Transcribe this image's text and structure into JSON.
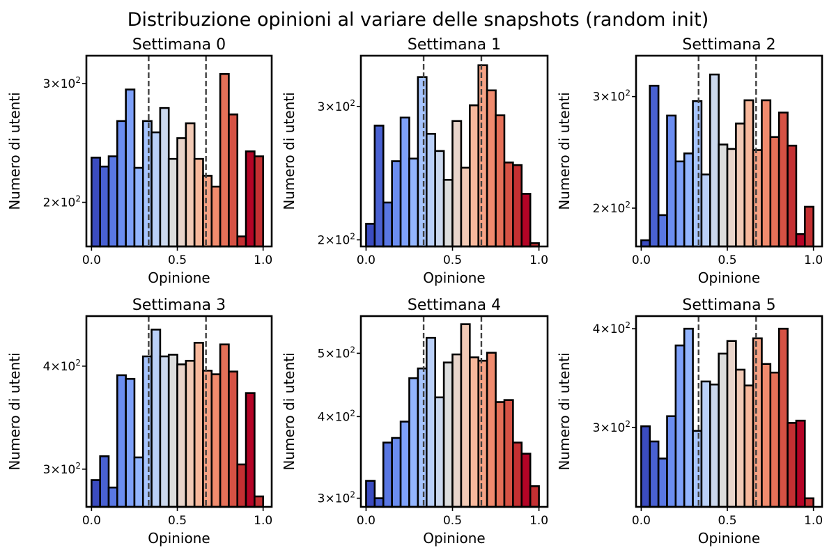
{
  "figure": {
    "title": "Distribuzione opinioni al variare delle snapshots (random init)"
  },
  "chart_data": [
    {
      "type": "bar",
      "title": "Settimana 0",
      "xlabel": "Opinione",
      "ylabel": "Numero di utenti",
      "yscale": "log",
      "ylim": [
        172,
        330
      ],
      "xlim": [
        -0.03,
        1.05
      ],
      "xticks": [
        0.0,
        0.5,
        1.0
      ],
      "xtick_labels": [
        "0.0",
        "0.5",
        "1.0"
      ],
      "yticks": [
        200,
        300
      ],
      "ytick_labels": [
        "2",
        "3"
      ],
      "ytick_base": "10",
      "ytick_exp": "2",
      "vlines": [
        0.333,
        0.667
      ],
      "bin_width": 0.05,
      "x": [
        0.0,
        0.05,
        0.1,
        0.15,
        0.2,
        0.25,
        0.3,
        0.35,
        0.4,
        0.45,
        0.5,
        0.55,
        0.6,
        0.65,
        0.7,
        0.75,
        0.8,
        0.85,
        0.9,
        0.95
      ],
      "values": [
        233,
        226,
        234,
        264,
        294,
        225,
        264,
        254,
        276,
        232,
        249,
        262,
        232,
        219,
        211,
        310,
        270,
        178,
        238,
        234
      ],
      "colors": [
        "#3b4cc0",
        "#4961d2",
        "#5977e3",
        "#6b8df0",
        "#7ea1fa",
        "#93b5fe",
        "#a7c5fe",
        "#bad0f8",
        "#cbd8ee",
        "#dcdddd",
        "#e9d5cb",
        "#f2cab6",
        "#f7b89c",
        "#f6a385",
        "#f08b6e",
        "#e57058",
        "#d65244",
        "#c43032",
        "#b40426",
        "#c43032"
      ]
    },
    {
      "type": "bar",
      "title": "Settimana 1",
      "xlabel": "Opinione",
      "ylabel": "Numero di utenti",
      "yscale": "log",
      "ylim": [
        196,
        350
      ],
      "xlim": [
        -0.03,
        1.05
      ],
      "xticks": [
        0.0,
        0.5,
        1.0
      ],
      "xtick_labels": [
        "0.0",
        "0.5",
        "1.0"
      ],
      "yticks": [
        200,
        300
      ],
      "ytick_labels": [
        "2",
        "3"
      ],
      "ytick_base": "10",
      "ytick_exp": "2",
      "vlines": [
        0.333,
        0.667
      ],
      "bin_width": 0.05,
      "x": [
        0.0,
        0.05,
        0.1,
        0.15,
        0.2,
        0.25,
        0.3,
        0.35,
        0.4,
        0.45,
        0.5,
        0.55,
        0.6,
        0.65,
        0.7,
        0.75,
        0.8,
        0.85,
        0.9,
        0.95
      ],
      "values": [
        210,
        283,
        224,
        254,
        290,
        256,
        328,
        276,
        262,
        240,
        287,
        249,
        301,
        340,
        315,
        292,
        253,
        251,
        230,
        198
      ],
      "colors": [
        "#3b4cc0",
        "#4961d2",
        "#5977e3",
        "#6b8df0",
        "#7ea1fa",
        "#93b5fe",
        "#a7c5fe",
        "#bad0f8",
        "#cbd8ee",
        "#dcdddd",
        "#e9d5cb",
        "#f2cab6",
        "#f7b89c",
        "#f6a385",
        "#f08b6e",
        "#e57058",
        "#d65244",
        "#c43032",
        "#b40426",
        "#c43032"
      ]
    },
    {
      "type": "bar",
      "title": "Settimana 2",
      "xlabel": "Opinione",
      "ylabel": "Numero di utenti",
      "yscale": "log",
      "ylim": [
        174,
        348
      ],
      "xlim": [
        -0.03,
        1.05
      ],
      "xticks": [
        0.0,
        0.5,
        1.0
      ],
      "xtick_labels": [
        "0.0",
        "0.5",
        "1.0"
      ],
      "yticks": [
        200,
        300
      ],
      "ytick_labels": [
        "2",
        "3"
      ],
      "ytick_base": "10",
      "ytick_exp": "2",
      "vlines": [
        0.333,
        0.667
      ],
      "bin_width": 0.05,
      "x": [
        0.0,
        0.05,
        0.1,
        0.15,
        0.2,
        0.25,
        0.3,
        0.35,
        0.4,
        0.45,
        0.5,
        0.55,
        0.6,
        0.65,
        0.7,
        0.75,
        0.8,
        0.85,
        0.9,
        0.95
      ],
      "values": [
        178,
        312,
        195,
        280,
        237,
        244,
        295,
        226,
        325,
        252,
        248,
        272,
        296,
        247,
        296,
        259,
        283,
        251,
        182,
        201
      ],
      "colors": [
        "#3b4cc0",
        "#4961d2",
        "#5977e3",
        "#6b8df0",
        "#7ea1fa",
        "#93b5fe",
        "#a7c5fe",
        "#bad0f8",
        "#cbd8ee",
        "#dcdddd",
        "#e9d5cb",
        "#f2cab6",
        "#f7b89c",
        "#f6a385",
        "#f08b6e",
        "#e57058",
        "#d65244",
        "#c43032",
        "#b40426",
        "#c43032"
      ]
    },
    {
      "type": "bar",
      "title": "Settimana 3",
      "xlabel": "Opinione",
      "ylabel": "Numero di utenti",
      "yscale": "log",
      "ylim": [
        270,
        460
      ],
      "xlim": [
        -0.03,
        1.05
      ],
      "xticks": [
        0.0,
        0.5,
        1.0
      ],
      "xtick_labels": [
        "0.0",
        "0.5",
        "1.0"
      ],
      "yticks": [
        300,
        400
      ],
      "ytick_labels": [
        "3",
        "4"
      ],
      "ytick_base": "10",
      "ytick_exp": "2",
      "vlines": [
        0.333,
        0.667
      ],
      "bin_width": 0.05,
      "x": [
        0.0,
        0.05,
        0.1,
        0.15,
        0.2,
        0.25,
        0.3,
        0.35,
        0.4,
        0.45,
        0.5,
        0.55,
        0.6,
        0.65,
        0.7,
        0.75,
        0.8,
        0.85,
        0.9,
        0.95
      ],
      "values": [
        291,
        311,
        285,
        390,
        386,
        310,
        411,
        443,
        411,
        413,
        402,
        406,
        427,
        395,
        391,
        425,
        394,
        304,
        371,
        278
      ],
      "colors": [
        "#3b4cc0",
        "#4961d2",
        "#5977e3",
        "#6b8df0",
        "#7ea1fa",
        "#93b5fe",
        "#a7c5fe",
        "#bad0f8",
        "#cbd8ee",
        "#dcdddd",
        "#e9d5cb",
        "#f2cab6",
        "#f7b89c",
        "#f6a385",
        "#f08b6e",
        "#e57058",
        "#d65244",
        "#c43032",
        "#b40426",
        "#c43032"
      ]
    },
    {
      "type": "bar",
      "title": "Settimana 4",
      "xlabel": "Opinione",
      "ylabel": "Numero di utenti",
      "yscale": "log",
      "ylim": [
        291,
        570
      ],
      "xlim": [
        -0.03,
        1.05
      ],
      "xticks": [
        0.0,
        0.5,
        1.0
      ],
      "xtick_labels": [
        "0.0",
        "0.5",
        "1.0"
      ],
      "yticks": [
        300,
        400,
        500
      ],
      "ytick_labels": [
        "3",
        "4",
        "5"
      ],
      "ytick_base": "10",
      "ytick_exp": "2",
      "vlines": [
        0.333,
        0.667
      ],
      "bin_width": 0.05,
      "x": [
        0.0,
        0.05,
        0.1,
        0.15,
        0.2,
        0.25,
        0.3,
        0.35,
        0.4,
        0.45,
        0.5,
        0.55,
        0.6,
        0.65,
        0.7,
        0.75,
        0.8,
        0.85,
        0.9,
        0.95
      ],
      "values": [
        319,
        300,
        365,
        371,
        393,
        458,
        474,
        528,
        428,
        484,
        498,
        554,
        493,
        487,
        501,
        421,
        424,
        365,
        351,
        313
      ],
      "colors": [
        "#3b4cc0",
        "#4961d2",
        "#5977e3",
        "#6b8df0",
        "#7ea1fa",
        "#93b5fe",
        "#a7c5fe",
        "#bad0f8",
        "#cbd8ee",
        "#dcdddd",
        "#e9d5cb",
        "#f2cab6",
        "#f7b89c",
        "#f6a385",
        "#f08b6e",
        "#e57058",
        "#d65244",
        "#c43032",
        "#b40426",
        "#c43032"
      ]
    },
    {
      "type": "bar",
      "title": "Settimana 5",
      "xlabel": "Opinione",
      "ylabel": "Numero di utenti",
      "yscale": "log",
      "ylim": [
        238,
        415
      ],
      "xlim": [
        -0.03,
        1.05
      ],
      "xticks": [
        0.0,
        0.5,
        1.0
      ],
      "xtick_labels": [
        "0.0",
        "0.5",
        "1.0"
      ],
      "yticks": [
        300,
        400
      ],
      "ytick_labels": [
        "3",
        "4"
      ],
      "ytick_base": "10",
      "ytick_exp": "2",
      "vlines": [
        0.333,
        0.667
      ],
      "bin_width": 0.05,
      "x": [
        0.0,
        0.05,
        0.1,
        0.15,
        0.2,
        0.25,
        0.3,
        0.35,
        0.4,
        0.45,
        0.5,
        0.55,
        0.6,
        0.65,
        0.7,
        0.75,
        0.8,
        0.85,
        0.9,
        0.95
      ],
      "values": [
        301,
        288,
        274,
        310,
        381,
        400,
        297,
        343,
        340,
        372,
        386,
        355,
        339,
        389,
        361,
        352,
        400,
        304,
        306,
        244
      ],
      "colors": [
        "#3b4cc0",
        "#4961d2",
        "#5977e3",
        "#6b8df0",
        "#7ea1fa",
        "#93b5fe",
        "#a7c5fe",
        "#bad0f8",
        "#cbd8ee",
        "#dcdddd",
        "#e9d5cb",
        "#f2cab6",
        "#f7b89c",
        "#f6a385",
        "#f08b6e",
        "#e57058",
        "#d65244",
        "#c43032",
        "#b40426",
        "#c43032"
      ]
    }
  ]
}
